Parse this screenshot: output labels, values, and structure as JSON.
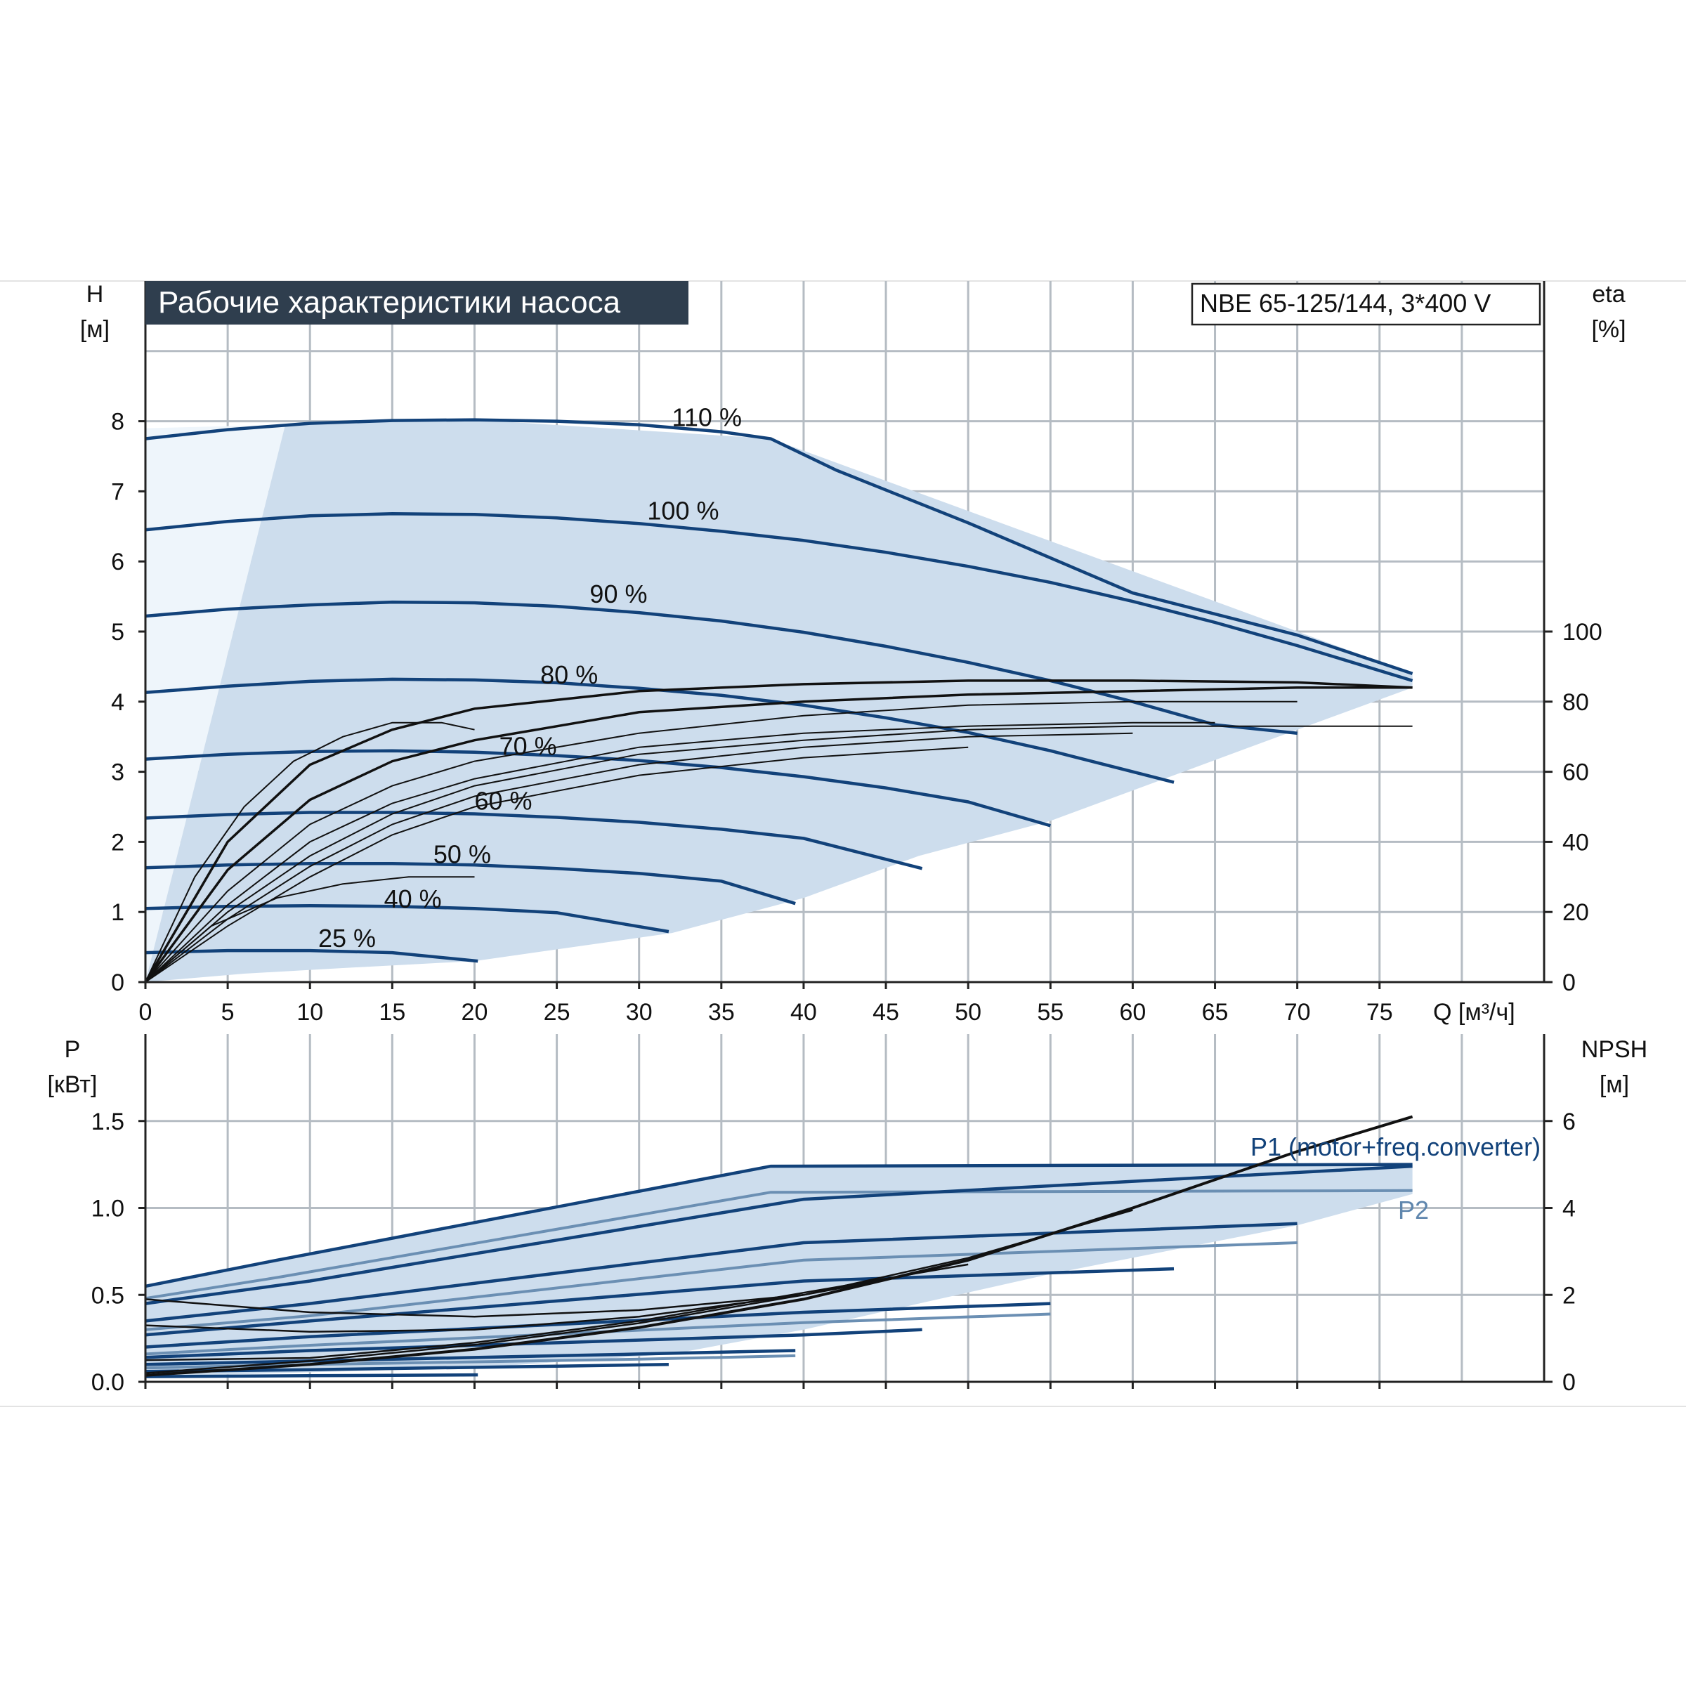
{
  "colors": {
    "curve_blue": "#12427a",
    "curve_blue_light": "#6b8fb3",
    "eta_black": "#111111",
    "region_fill": "#cddded",
    "region_fill_light": "#eef5fb",
    "grid": "#b5bcc3",
    "title_bg": "#2f3e4e",
    "title_text": "#ffffff"
  },
  "title": "Рабочие характеристики насоса",
  "model_box": "NBE 65-125/144, 3*400 V",
  "chart_data": [
    {
      "id": "head",
      "type": "line",
      "grid": true,
      "xlim": [
        0,
        85
      ],
      "xticks": [
        0,
        5,
        10,
        15,
        20,
        25,
        30,
        35,
        40,
        45,
        50,
        55,
        60,
        65,
        70,
        75
      ],
      "xlabel": "Q [м³/ч]",
      "ylim": [
        0,
        10
      ],
      "yticks": [
        0,
        1,
        2,
        3,
        4,
        5,
        6,
        7,
        8
      ],
      "ylabel_line1": "H",
      "ylabel_line2": "[м]",
      "y2lim": [
        0,
        200
      ],
      "y2ticks": [
        0,
        20,
        40,
        60,
        80,
        100
      ],
      "y2label_line1": "eta",
      "y2label_line2": "[%]",
      "operating_region": {
        "x": [
          0,
          8.5,
          20,
          38,
          77,
          77,
          70,
          55,
          47,
          40,
          32,
          20,
          12,
          6,
          2.5,
          0
        ],
        "y": [
          0,
          7.95,
          8.02,
          7.75,
          4.4,
          4.2,
          3.6,
          2.3,
          1.8,
          1.2,
          0.7,
          0.3,
          0.2,
          0.12,
          0.05,
          0
        ]
      },
      "series": [
        {
          "label": "110 %",
          "label_at": [
            32,
            8.05
          ],
          "x": [
            0,
            5,
            10,
            15,
            20,
            25,
            30,
            35,
            38,
            42,
            50,
            60,
            70,
            77
          ],
          "y": [
            7.75,
            7.88,
            7.97,
            8.01,
            8.02,
            8.0,
            7.95,
            7.85,
            7.75,
            7.3,
            6.55,
            5.55,
            4.95,
            4.4
          ]
        },
        {
          "label": "100 %",
          "label_at": [
            30.5,
            6.72
          ],
          "x": [
            0,
            5,
            10,
            15,
            20,
            25,
            30,
            35,
            40,
            45,
            50,
            55,
            60,
            65,
            70,
            77
          ],
          "y": [
            6.45,
            6.57,
            6.65,
            6.68,
            6.67,
            6.62,
            6.54,
            6.43,
            6.3,
            6.13,
            5.93,
            5.7,
            5.43,
            5.13,
            4.8,
            4.3
          ]
        },
        {
          "label": "90 %",
          "label_at": [
            27,
            5.53
          ],
          "x": [
            0,
            5,
            10,
            15,
            20,
            25,
            30,
            35,
            40,
            45,
            50,
            55,
            60,
            65,
            70
          ],
          "y": [
            5.22,
            5.32,
            5.38,
            5.42,
            5.41,
            5.36,
            5.27,
            5.15,
            4.99,
            4.79,
            4.56,
            4.3,
            4.0,
            3.67,
            3.55
          ]
        },
        {
          "label": "80 %",
          "label_at": [
            24,
            4.38
          ],
          "x": [
            0,
            5,
            10,
            15,
            20,
            25,
            30,
            35,
            40,
            45,
            50,
            55,
            60,
            62.5
          ],
          "y": [
            4.13,
            4.22,
            4.29,
            4.32,
            4.31,
            4.27,
            4.19,
            4.09,
            3.95,
            3.77,
            3.56,
            3.3,
            3.0,
            2.85
          ]
        },
        {
          "label": "70 %",
          "label_at": [
            21.5,
            3.36
          ],
          "x": [
            0,
            5,
            10,
            15,
            20,
            25,
            30,
            35,
            40,
            45,
            50,
            55
          ],
          "y": [
            3.18,
            3.25,
            3.29,
            3.3,
            3.28,
            3.23,
            3.16,
            3.06,
            2.93,
            2.77,
            2.57,
            2.23
          ]
        },
        {
          "label": "60 %",
          "label_at": [
            20,
            2.58
          ],
          "x": [
            0,
            5,
            10,
            15,
            20,
            25,
            30,
            35,
            40,
            47.2
          ],
          "y": [
            2.34,
            2.39,
            2.42,
            2.42,
            2.4,
            2.35,
            2.28,
            2.18,
            2.05,
            1.62
          ]
        },
        {
          "label": "50 %",
          "label_at": [
            17.5,
            1.82
          ],
          "x": [
            0,
            5,
            10,
            15,
            20,
            25,
            30,
            35,
            39.5
          ],
          "y": [
            1.63,
            1.67,
            1.69,
            1.69,
            1.67,
            1.62,
            1.55,
            1.44,
            1.12
          ]
        },
        {
          "label": "40 %",
          "label_at": [
            14.5,
            1.18
          ],
          "x": [
            0,
            5,
            10,
            15,
            20,
            25,
            31.8
          ],
          "y": [
            1.05,
            1.08,
            1.09,
            1.08,
            1.05,
            0.99,
            0.72
          ]
        },
        {
          "label": "25 %",
          "label_at": [
            10.5,
            0.62
          ],
          "x": [
            0,
            5,
            10,
            15,
            20.2
          ],
          "y": [
            0.42,
            0.45,
            0.45,
            0.42,
            0.3
          ]
        }
      ],
      "eta_curves": [
        {
          "x": [
            0,
            5,
            10,
            15,
            20,
            30,
            40,
            50,
            60,
            70,
            77
          ],
          "y": [
            0,
            40,
            62,
            72,
            78,
            83,
            85,
            86,
            86,
            85.5,
            84
          ]
        },
        {
          "x": [
            0,
            5,
            10,
            15,
            20,
            30,
            40,
            50,
            60,
            70,
            77
          ],
          "y": [
            0,
            32,
            52,
            63,
            69,
            77,
            80,
            82,
            83,
            84,
            84
          ]
        },
        {
          "x": [
            0,
            5,
            10,
            15,
            20,
            30,
            40,
            50,
            60,
            70
          ],
          "y": [
            0,
            26,
            45,
            56,
            63,
            71,
            76,
            79,
            80,
            80
          ]
        },
        {
          "x": [
            0,
            5,
            10,
            15,
            20,
            30,
            40,
            50,
            60,
            65
          ],
          "y": [
            0,
            22,
            40,
            51,
            58,
            67,
            71,
            73,
            74,
            74
          ]
        },
        {
          "x": [
            0,
            5,
            10,
            15,
            20,
            30,
            40,
            50,
            60,
            77
          ],
          "y": [
            0,
            20,
            36,
            48,
            56,
            65,
            69,
            72,
            73,
            73
          ]
        },
        {
          "x": [
            0,
            5,
            10,
            15,
            20,
            30,
            40,
            50,
            60
          ],
          "y": [
            0,
            18,
            33,
            45,
            53,
            62,
            67,
            70,
            71
          ]
        },
        {
          "x": [
            0,
            5,
            10,
            15,
            20,
            30,
            40,
            50
          ],
          "y": [
            0,
            16,
            30,
            42,
            50,
            59,
            64,
            67
          ]
        },
        {
          "x": [
            0,
            4,
            8,
            12,
            16,
            20
          ],
          "y": [
            0,
            16,
            24,
            28,
            30,
            30
          ]
        },
        {
          "x": [
            0,
            3,
            6,
            9,
            12,
            15,
            18,
            20
          ],
          "y": [
            0,
            30,
            50,
            63,
            70,
            74,
            74,
            72
          ]
        }
      ]
    },
    {
      "id": "power",
      "type": "line",
      "grid": true,
      "xlim": [
        0,
        85
      ],
      "ylim": [
        0,
        2.0
      ],
      "yticks": [
        0.0,
        0.5,
        1.0,
        1.5
      ],
      "ytick_labels": [
        "0.0",
        "0.5",
        "1.0",
        "1.5"
      ],
      "ylabel_line1": "P",
      "ylabel_line2": "[кВт]",
      "y2lim": [
        0,
        8
      ],
      "y2ticks": [
        0,
        2,
        4,
        6
      ],
      "y2label_line1": "NPSH",
      "y2label_line2": "[м]",
      "legend": [
        "P1 (motor+freq.converter)",
        "P2"
      ],
      "operating_region": {
        "x": [
          0,
          8,
          38,
          77,
          77,
          70,
          55,
          47,
          40,
          32,
          20,
          0
        ],
        "y": [
          0.55,
          0.7,
          1.24,
          1.25,
          1.08,
          0.9,
          0.62,
          0.45,
          0.3,
          0.16,
          0.08,
          0.03
        ]
      },
      "p1_curves": [
        {
          "x": [
            0,
            8,
            38,
            77
          ],
          "y": [
            0.55,
            0.7,
            1.24,
            1.25
          ]
        },
        {
          "x": [
            0,
            10,
            40,
            77
          ],
          "y": [
            0.45,
            0.58,
            1.05,
            1.24
          ]
        },
        {
          "x": [
            0,
            10,
            40,
            70
          ],
          "y": [
            0.35,
            0.45,
            0.8,
            0.91
          ]
        },
        {
          "x": [
            0,
            10,
            40,
            62.5
          ],
          "y": [
            0.27,
            0.35,
            0.58,
            0.65
          ]
        },
        {
          "x": [
            0,
            10,
            40,
            55
          ],
          "y": [
            0.2,
            0.26,
            0.4,
            0.45
          ]
        },
        {
          "x": [
            0,
            10,
            40,
            47.2
          ],
          "y": [
            0.14,
            0.18,
            0.27,
            0.3
          ]
        },
        {
          "x": [
            0,
            10,
            30,
            39.5
          ],
          "y": [
            0.1,
            0.12,
            0.16,
            0.18
          ]
        },
        {
          "x": [
            0,
            10,
            25,
            31.8
          ],
          "y": [
            0.06,
            0.07,
            0.09,
            0.1
          ]
        },
        {
          "x": [
            0,
            10,
            20.2
          ],
          "y": [
            0.03,
            0.035,
            0.04
          ]
        }
      ],
      "p2_curves": [
        {
          "x": [
            0,
            8,
            38,
            77
          ],
          "y": [
            0.48,
            0.6,
            1.09,
            1.1
          ]
        },
        {
          "x": [
            0,
            10,
            40,
            70
          ],
          "y": [
            0.3,
            0.38,
            0.7,
            0.8
          ]
        },
        {
          "x": [
            0,
            10,
            40,
            55
          ],
          "y": [
            0.16,
            0.21,
            0.34,
            0.39
          ]
        },
        {
          "x": [
            0,
            10,
            30,
            39.5
          ],
          "y": [
            0.08,
            0.1,
            0.13,
            0.15
          ]
        }
      ],
      "npsh_curves": [
        {
          "x": [
            0,
            10,
            20,
            30,
            40,
            50,
            60,
            70,
            77
          ],
          "y": [
            0.15,
            0.4,
            0.75,
            1.25,
            1.9,
            2.8,
            4.0,
            5.3,
            6.1
          ]
        },
        {
          "x": [
            0,
            10,
            20,
            30,
            40,
            50,
            60
          ],
          "y": [
            0.2,
            0.48,
            0.85,
            1.35,
            2.0,
            2.85,
            3.95
          ]
        },
        {
          "x": [
            0,
            10,
            20,
            30,
            40,
            50
          ],
          "y": [
            0.5,
            0.55,
            0.9,
            1.4,
            2.05,
            2.7
          ]
        },
        {
          "x": [
            0,
            10,
            20,
            30,
            40,
            45
          ],
          "y": [
            1.3,
            1.15,
            1.2,
            1.5,
            2.0,
            2.35
          ]
        },
        {
          "x": [
            0,
            10,
            20,
            30,
            40
          ],
          "y": [
            1.9,
            1.6,
            1.5,
            1.65,
            2.0
          ]
        }
      ]
    }
  ]
}
